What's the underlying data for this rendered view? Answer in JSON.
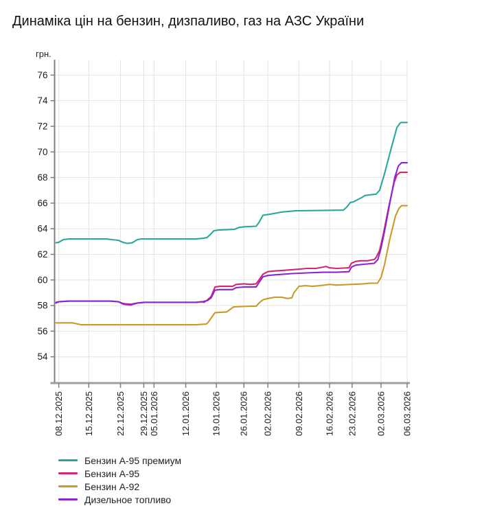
{
  "title": "Динаміка цін на бензин, дизпаливо, газ на АЗС України",
  "chart_data": {
    "type": "line",
    "title": "Динаміка цін на бензин, дизпаливо, газ на АЗС України",
    "xlabel": "",
    "ylabel": "грн.",
    "currency_unit": "грн.",
    "ylim": [
      52.0,
      77.2
    ],
    "y_ticks": [
      54,
      56,
      58,
      60,
      62,
      64,
      66,
      68,
      70,
      72,
      74,
      76
    ],
    "grid": true,
    "legend_position": "bottom-left",
    "x_ticks": [
      {
        "label": "08.12.2025",
        "t": 0.012
      },
      {
        "label": "15.12.2025",
        "t": 0.097
      },
      {
        "label": "22.12.2025",
        "t": 0.187
      },
      {
        "label": "29.12.2025",
        "t": 0.253
      },
      {
        "label": "05.01.2026",
        "t": 0.282
      },
      {
        "label": "12.01.2026",
        "t": 0.372
      },
      {
        "label": "19.01.2026",
        "t": 0.459
      },
      {
        "label": "26.01.2026",
        "t": 0.537
      },
      {
        "label": "02.02.2026",
        "t": 0.605
      },
      {
        "label": "09.02.2026",
        "t": 0.693
      },
      {
        "label": "16.02.2026",
        "t": 0.78
      },
      {
        "label": "23.02.2026",
        "t": 0.844
      },
      {
        "label": "02.03.2026",
        "t": 0.926
      },
      {
        "label": "06.03.2026",
        "t": 1.0
      }
    ],
    "series": [
      {
        "name": "Бензин А-95 премиум",
        "id": "benzin-a95-premium",
        "color": "#2aa79b",
        "points": [
          [
            0.004,
            62.9
          ],
          [
            0.012,
            62.95
          ],
          [
            0.025,
            63.15
          ],
          [
            0.041,
            63.2
          ],
          [
            0.148,
            63.2
          ],
          [
            0.161,
            63.15
          ],
          [
            0.181,
            63.1
          ],
          [
            0.193,
            62.95
          ],
          [
            0.206,
            62.85
          ],
          [
            0.22,
            62.9
          ],
          [
            0.235,
            63.15
          ],
          [
            0.245,
            63.2
          ],
          [
            0.401,
            63.2
          ],
          [
            0.42,
            63.25
          ],
          [
            0.432,
            63.3
          ],
          [
            0.44,
            63.5
          ],
          [
            0.452,
            63.85
          ],
          [
            0.465,
            63.9
          ],
          [
            0.51,
            63.95
          ],
          [
            0.523,
            64.1
          ],
          [
            0.537,
            64.15
          ],
          [
            0.572,
            64.2
          ],
          [
            0.58,
            64.5
          ],
          [
            0.591,
            65.05
          ],
          [
            0.615,
            65.15
          ],
          [
            0.644,
            65.3
          ],
          [
            0.683,
            65.4
          ],
          [
            0.819,
            65.45
          ],
          [
            0.829,
            65.7
          ],
          [
            0.839,
            66.05
          ],
          [
            0.848,
            66.1
          ],
          [
            0.872,
            66.45
          ],
          [
            0.881,
            66.6
          ],
          [
            0.912,
            66.7
          ],
          [
            0.922,
            67.0
          ],
          [
            0.936,
            68.3
          ],
          [
            0.955,
            70.3
          ],
          [
            0.971,
            71.9
          ],
          [
            0.98,
            72.25
          ],
          [
            0.984,
            72.3
          ],
          [
            1.0,
            72.3
          ]
        ]
      },
      {
        "name": "Бензин А-95",
        "id": "benzin-a95",
        "color": "#d6246e",
        "points": [
          [
            0.004,
            58.2
          ],
          [
            0.012,
            58.3
          ],
          [
            0.041,
            58.35
          ],
          [
            0.158,
            58.35
          ],
          [
            0.181,
            58.3
          ],
          [
            0.196,
            58.15
          ],
          [
            0.216,
            58.1
          ],
          [
            0.235,
            58.2
          ],
          [
            0.255,
            58.25
          ],
          [
            0.401,
            58.25
          ],
          [
            0.416,
            58.3
          ],
          [
            0.424,
            58.25
          ],
          [
            0.434,
            58.45
          ],
          [
            0.444,
            58.7
          ],
          [
            0.455,
            59.45
          ],
          [
            0.469,
            59.5
          ],
          [
            0.505,
            59.5
          ],
          [
            0.515,
            59.65
          ],
          [
            0.537,
            59.7
          ],
          [
            0.556,
            59.65
          ],
          [
            0.572,
            59.7
          ],
          [
            0.58,
            60.0
          ],
          [
            0.591,
            60.45
          ],
          [
            0.605,
            60.65
          ],
          [
            0.625,
            60.7
          ],
          [
            0.65,
            60.75
          ],
          [
            0.673,
            60.8
          ],
          [
            0.716,
            60.9
          ],
          [
            0.741,
            60.9
          ],
          [
            0.761,
            61.0
          ],
          [
            0.77,
            61.05
          ],
          [
            0.78,
            60.95
          ],
          [
            0.8,
            60.9
          ],
          [
            0.835,
            60.95
          ],
          [
            0.842,
            61.3
          ],
          [
            0.854,
            61.45
          ],
          [
            0.868,
            61.5
          ],
          [
            0.887,
            61.5
          ],
          [
            0.907,
            61.6
          ],
          [
            0.912,
            61.75
          ],
          [
            0.922,
            62.3
          ],
          [
            0.932,
            63.5
          ],
          [
            0.947,
            65.6
          ],
          [
            0.963,
            67.6
          ],
          [
            0.971,
            68.2
          ],
          [
            0.98,
            68.4
          ],
          [
            1.0,
            68.4
          ]
        ]
      },
      {
        "name": "Бензин А-92",
        "id": "benzin-a92",
        "color": "#c9992a",
        "points": [
          [
            0.004,
            56.65
          ],
          [
            0.051,
            56.65
          ],
          [
            0.076,
            56.5
          ],
          [
            0.401,
            56.5
          ],
          [
            0.43,
            56.55
          ],
          [
            0.436,
            56.7
          ],
          [
            0.446,
            57.1
          ],
          [
            0.455,
            57.45
          ],
          [
            0.488,
            57.5
          ],
          [
            0.498,
            57.7
          ],
          [
            0.508,
            57.9
          ],
          [
            0.556,
            57.95
          ],
          [
            0.572,
            57.95
          ],
          [
            0.58,
            58.2
          ],
          [
            0.591,
            58.45
          ],
          [
            0.605,
            58.55
          ],
          [
            0.625,
            58.65
          ],
          [
            0.644,
            58.65
          ],
          [
            0.66,
            58.55
          ],
          [
            0.673,
            58.6
          ],
          [
            0.679,
            59.0
          ],
          [
            0.693,
            59.5
          ],
          [
            0.712,
            59.55
          ],
          [
            0.731,
            59.5
          ],
          [
            0.751,
            59.55
          ],
          [
            0.78,
            59.65
          ],
          [
            0.8,
            59.6
          ],
          [
            0.839,
            59.65
          ],
          [
            0.877,
            59.7
          ],
          [
            0.897,
            59.75
          ],
          [
            0.916,
            59.75
          ],
          [
            0.926,
            60.2
          ],
          [
            0.936,
            61.2
          ],
          [
            0.951,
            63.2
          ],
          [
            0.967,
            65.0
          ],
          [
            0.977,
            65.6
          ],
          [
            0.984,
            65.8
          ],
          [
            1.0,
            65.8
          ]
        ]
      },
      {
        "name": "Дизельное топливо",
        "id": "dizelnoe-toplivo",
        "color": "#8a24d4",
        "points": [
          [
            0.004,
            58.25
          ],
          [
            0.012,
            58.3
          ],
          [
            0.041,
            58.35
          ],
          [
            0.158,
            58.35
          ],
          [
            0.181,
            58.3
          ],
          [
            0.196,
            58.1
          ],
          [
            0.216,
            58.05
          ],
          [
            0.235,
            58.2
          ],
          [
            0.255,
            58.25
          ],
          [
            0.401,
            58.25
          ],
          [
            0.42,
            58.3
          ],
          [
            0.434,
            58.4
          ],
          [
            0.444,
            58.6
          ],
          [
            0.455,
            59.2
          ],
          [
            0.469,
            59.25
          ],
          [
            0.505,
            59.25
          ],
          [
            0.515,
            59.4
          ],
          [
            0.537,
            59.45
          ],
          [
            0.572,
            59.45
          ],
          [
            0.58,
            59.8
          ],
          [
            0.591,
            60.25
          ],
          [
            0.605,
            60.35
          ],
          [
            0.625,
            60.4
          ],
          [
            0.65,
            60.45
          ],
          [
            0.673,
            60.5
          ],
          [
            0.716,
            60.55
          ],
          [
            0.761,
            60.6
          ],
          [
            0.8,
            60.6
          ],
          [
            0.835,
            60.65
          ],
          [
            0.842,
            61.0
          ],
          [
            0.854,
            61.15
          ],
          [
            0.868,
            61.2
          ],
          [
            0.887,
            61.25
          ],
          [
            0.907,
            61.3
          ],
          [
            0.917,
            61.6
          ],
          [
            0.926,
            62.5
          ],
          [
            0.936,
            63.8
          ],
          [
            0.951,
            66.0
          ],
          [
            0.965,
            68.0
          ],
          [
            0.975,
            68.9
          ],
          [
            0.984,
            69.15
          ],
          [
            1.0,
            69.15
          ]
        ]
      }
    ],
    "colors": {
      "grid": "#e3e3e3",
      "axis_y": "#7f7f7f",
      "axis_x": "#9e9e9e",
      "tick_text": "#1a1a1a"
    }
  }
}
